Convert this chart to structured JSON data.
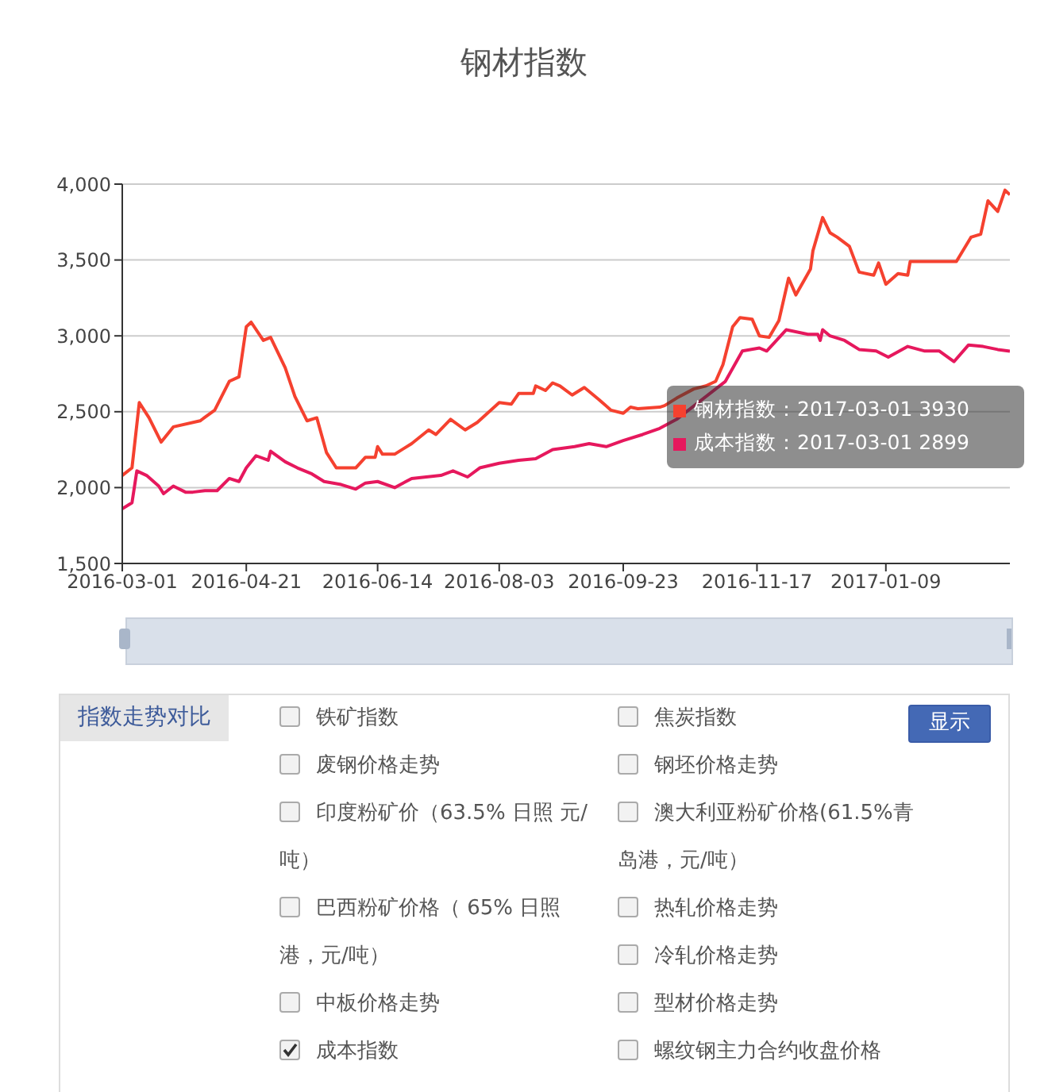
{
  "chart_data": [
    {
      "type": "line",
      "title": "钢材指数",
      "xlim": [
        "2016-03-01",
        "2017-03-01"
      ],
      "xticks": [
        "2016-03-01",
        "2016-04-21",
        "2016-06-14",
        "2016-08-03",
        "2016-09-23",
        "2016-11-17",
        "2017-01-09"
      ],
      "ylim": [
        1500,
        4000
      ],
      "yticks": [
        {
          "value": 1500,
          "label": "1,500"
        },
        {
          "value": 2000,
          "label": "2,000"
        },
        {
          "value": 2500,
          "label": "2,500"
        },
        {
          "value": 3000,
          "label": "3,000"
        },
        {
          "value": 3500,
          "label": "3,500"
        },
        {
          "value": 4000,
          "label": "4,000"
        }
      ],
      "grid": "y",
      "legend": "right",
      "line_style": "solid",
      "annotations": [
        "：2017-03-01 3930",
        "：2017-03-01 2899"
      ],
      "series": [
        {
          "name": "钢材指数",
          "color": "#f5412f",
          "x": [
            "2016-03-01",
            "2016-03-05",
            "2016-03-08",
            "2016-03-12",
            "2016-03-17",
            "2016-03-22",
            "2016-04-02",
            "2016-04-08",
            "2016-04-14",
            "2016-04-18",
            "2016-04-21",
            "2016-04-23",
            "2016-04-28",
            "2016-05-01",
            "2016-05-07",
            "2016-05-11",
            "2016-05-16",
            "2016-05-20",
            "2016-05-24",
            "2016-05-28",
            "2016-06-05",
            "2016-06-09",
            "2016-06-13",
            "2016-06-14",
            "2016-06-16",
            "2016-06-21",
            "2016-06-28",
            "2016-07-05",
            "2016-07-08",
            "2016-07-14",
            "2016-07-20",
            "2016-07-25",
            "2016-08-03",
            "2016-08-08",
            "2016-08-11",
            "2016-08-17",
            "2016-08-18",
            "2016-08-22",
            "2016-08-25",
            "2016-08-28",
            "2016-09-02",
            "2016-09-07",
            "2016-09-13",
            "2016-09-18",
            "2016-09-23",
            "2016-09-26",
            "2016-09-29",
            "2016-10-08",
            "2016-10-10",
            "2016-10-15",
            "2016-10-22",
            "2016-10-27",
            "2016-10-31",
            "2016-11-03",
            "2016-11-07",
            "2016-11-10",
            "2016-11-15",
            "2016-11-18",
            "2016-11-22",
            "2016-11-26",
            "2016-11-30",
            "2016-12-03",
            "2016-12-09",
            "2016-12-10",
            "2016-12-14",
            "2016-12-17",
            "2016-12-20",
            "2016-12-25",
            "2016-12-29",
            "2017-01-04",
            "2017-01-06",
            "2017-01-09",
            "2017-01-14",
            "2017-01-18",
            "2017-01-19",
            "2017-02-07",
            "2017-02-13",
            "2017-02-17",
            "2017-02-20",
            "2017-02-24",
            "2017-02-27",
            "2017-03-01"
          ],
          "values": [
            2080,
            2130,
            2560,
            2460,
            2300,
            2400,
            2440,
            2510,
            2700,
            2730,
            3060,
            3090,
            2970,
            2990,
            2790,
            2600,
            2440,
            2460,
            2230,
            2130,
            2130,
            2200,
            2200,
            2270,
            2220,
            2220,
            2290,
            2380,
            2350,
            2450,
            2380,
            2430,
            2560,
            2550,
            2620,
            2620,
            2670,
            2640,
            2690,
            2670,
            2610,
            2660,
            2580,
            2510,
            2490,
            2530,
            2520,
            2530,
            2540,
            2590,
            2650,
            2670,
            2700,
            2810,
            3060,
            3120,
            3110,
            3000,
            2990,
            3100,
            3380,
            3270,
            3440,
            3560,
            3780,
            3680,
            3650,
            3590,
            3420,
            3400,
            3480,
            3340,
            3410,
            3400,
            3490,
            3490,
            3650,
            3670,
            3890,
            3820,
            3960,
            3930
          ]
        },
        {
          "name": "成本指数",
          "color": "#e6185d",
          "x": [
            "2016-03-01",
            "2016-03-05",
            "2016-03-07",
            "2016-03-11",
            "2016-03-16",
            "2016-03-18",
            "2016-03-22",
            "2016-03-27",
            "2016-03-30",
            "2016-04-04",
            "2016-04-09",
            "2016-04-14",
            "2016-04-18",
            "2016-04-21",
            "2016-04-25",
            "2016-04-30",
            "2016-05-01",
            "2016-05-07",
            "2016-05-12",
            "2016-05-18",
            "2016-05-23",
            "2016-05-30",
            "2016-06-05",
            "2016-06-09",
            "2016-06-14",
            "2016-06-21",
            "2016-06-28",
            "2016-07-10",
            "2016-07-15",
            "2016-07-21",
            "2016-07-26",
            "2016-08-03",
            "2016-08-11",
            "2016-08-18",
            "2016-08-25",
            "2016-09-03",
            "2016-09-09",
            "2016-09-16",
            "2016-09-23",
            "2016-10-01",
            "2016-10-08",
            "2016-10-15",
            "2016-11-04",
            "2016-11-11",
            "2016-11-18",
            "2016-11-21",
            "2016-11-29",
            "2016-12-08",
            "2016-12-12",
            "2016-12-13",
            "2016-12-14",
            "2016-12-17",
            "2016-12-23",
            "2016-12-29",
            "2017-01-05",
            "2017-01-10",
            "2017-01-18",
            "2017-01-25",
            "2017-01-31",
            "2017-02-06",
            "2017-02-12",
            "2017-02-18",
            "2017-02-24",
            "2017-03-01"
          ],
          "values": [
            1860,
            1900,
            2110,
            2080,
            2010,
            1960,
            2010,
            1970,
            1970,
            1980,
            1980,
            2060,
            2040,
            2130,
            2210,
            2180,
            2240,
            2170,
            2130,
            2090,
            2040,
            2020,
            1990,
            2030,
            2040,
            2000,
            2060,
            2080,
            2110,
            2070,
            2130,
            2160,
            2180,
            2190,
            2250,
            2270,
            2290,
            2270,
            2310,
            2350,
            2390,
            2450,
            2700,
            2900,
            2920,
            2900,
            3040,
            3010,
            3010,
            2970,
            3040,
            3000,
            2970,
            2910,
            2900,
            2860,
            2930,
            2900,
            2900,
            2830,
            2940,
            2930,
            2910,
            2899
          ]
        }
      ]
    },
    {
      "type": "other",
      "title": "指数走势对比",
      "categories": [
        "铁矿指数",
        "焦炭指数",
        "废钢价格走势",
        "钢坯价格走势",
        "印度粉矿价（63.5% 日照 元/吨）",
        "澳大利亚粉矿价格(61.5%青岛港，元/吨）",
        "巴西粉矿价格（ 65% 日照港，元/吨）",
        "热轧价格走势",
        "冷轧价格走势",
        "中板价格走势",
        "型材价格走势",
        "成本指数",
        "螺纹钢主力合约收盘价格"
      ],
      "colors": [
        null,
        null,
        null,
        null,
        null,
        null,
        null,
        null,
        null,
        null,
        null,
        "#333333",
        null
      ],
      "annotations": [
        "显示"
      ]
    }
  ]
}
